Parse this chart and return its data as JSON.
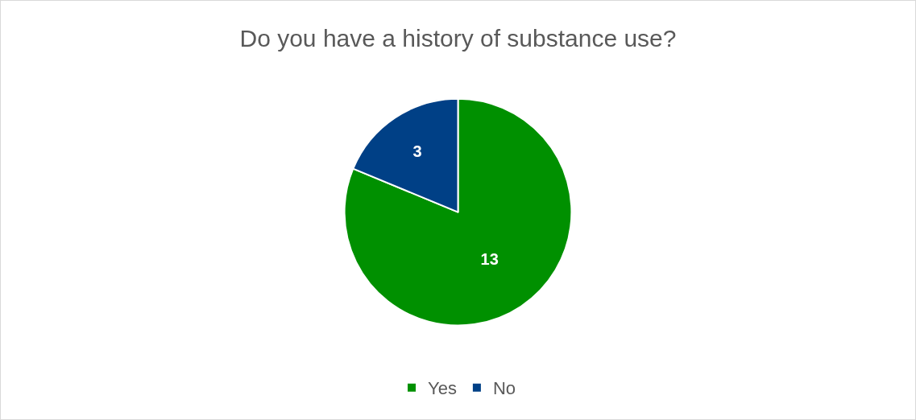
{
  "chart_data": {
    "type": "pie",
    "title": "Do you have a history of substance use?",
    "categories": [
      "Yes",
      "No"
    ],
    "values": [
      13,
      3
    ],
    "colors": [
      "#009000",
      "#004086"
    ],
    "data_labels": true,
    "legend": "bottom"
  }
}
